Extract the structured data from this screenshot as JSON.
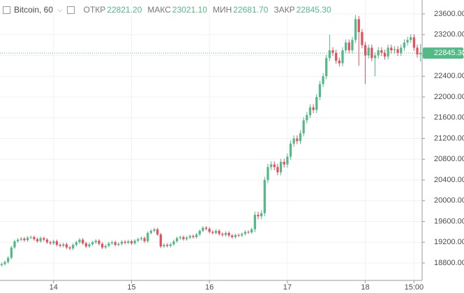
{
  "chart_data": {
    "type": "candlestick",
    "title": "Bitcoin, 60",
    "info": [
      {
        "label": "ОТКР",
        "value": "22821.20"
      },
      {
        "label": "МАКС",
        "value": "23021.10"
      },
      {
        "label": "МИН",
        "value": "22681.70"
      },
      {
        "label": "ЗАКР",
        "value": "22845.30"
      }
    ],
    "up_color": "#53b987",
    "down_color": "#eb4d5c",
    "grid": true,
    "ylim": [
      18464,
      23869
    ],
    "yticks": [
      {
        "value": 18800,
        "label": "18800.00"
      },
      {
        "value": 19200,
        "label": "19200.00"
      },
      {
        "value": 19600,
        "label": "19600.00"
      },
      {
        "value": 20000,
        "label": "20000.00"
      },
      {
        "value": 20400,
        "label": "20400.00"
      },
      {
        "value": 20800,
        "label": "20800.00"
      },
      {
        "value": 21200,
        "label": "21200.00"
      },
      {
        "value": 21600,
        "label": "21600.00"
      },
      {
        "value": 22000,
        "label": "22000.00"
      },
      {
        "value": 22400,
        "label": "22400.00"
      },
      {
        "value": 22800,
        "label": "22800.00"
      },
      {
        "value": 23200,
        "label": "23200.00"
      },
      {
        "value": 23600,
        "label": "23600.00"
      }
    ],
    "last_price": {
      "value": 22845.3,
      "label": "22845.30"
    },
    "categories": [
      null,
      null,
      null,
      null,
      null,
      null,
      null,
      null,
      null,
      null,
      null,
      null,
      null,
      null,
      null,
      null,
      "14",
      null,
      null,
      null,
      null,
      null,
      null,
      null,
      null,
      null,
      null,
      null,
      null,
      null,
      null,
      null,
      null,
      null,
      null,
      null,
      null,
      null,
      null,
      null,
      "15",
      null,
      null,
      null,
      null,
      null,
      null,
      null,
      null,
      null,
      null,
      null,
      null,
      null,
      null,
      null,
      null,
      null,
      null,
      null,
      null,
      null,
      null,
      null,
      "16",
      null,
      null,
      null,
      null,
      null,
      null,
      null,
      null,
      null,
      null,
      null,
      null,
      null,
      null,
      null,
      null,
      null,
      null,
      null,
      null,
      null,
      null,
      null,
      "17",
      null,
      null,
      null,
      null,
      null,
      null,
      null,
      null,
      null,
      null,
      null,
      null,
      null,
      null,
      null,
      null,
      null,
      null,
      null,
      null,
      null,
      null,
      null,
      "18",
      null,
      null,
      null,
      null,
      null,
      null,
      null,
      null,
      null,
      null,
      null,
      null,
      null,
      null,
      "15:00",
      null,
      null
    ],
    "open": [
      18760,
      18780,
      18820,
      18900,
      19100,
      19220,
      19250,
      19270,
      19240,
      19290,
      19300,
      19260,
      19220,
      19280,
      19250,
      19200,
      19180,
      19220,
      19150,
      19130,
      19160,
      19100,
      19080,
      19150,
      19200,
      19250,
      19180,
      19120,
      19160,
      19200,
      19230,
      19170,
      19100,
      19130,
      19180,
      19200,
      19150,
      19170,
      19210,
      19190,
      19220,
      19180,
      19230,
      19260,
      19280,
      19220,
      19380,
      19420,
      19450,
      19350,
      19120,
      19150,
      19130,
      19160,
      19220,
      19280,
      19300,
      19260,
      19290,
      19320,
      19300,
      19350,
      19420,
      19480,
      19460,
      19400,
      19380,
      19420,
      19360,
      19340,
      19380,
      19330,
      19300,
      19340,
      19330,
      19360,
      19400,
      19390,
      19450,
      19730,
      19700,
      19760,
      20400,
      20650,
      20700,
      20650,
      20550,
      20750,
      20700,
      20850,
      21100,
      21200,
      21150,
      21300,
      21550,
      21650,
      21800,
      21750,
      22000,
      22250,
      22400,
      22750,
      22900,
      22850,
      22700,
      22650,
      22900,
      23050,
      22900,
      23100,
      23500,
      23250,
      23000,
      22800,
      22950,
      22750,
      22800,
      22900,
      22850,
      22780,
      22950,
      22900,
      22920,
      22850,
      22950,
      23050,
      23100,
      23150,
      22950,
      22821.2
    ],
    "high": [
      18810,
      18850,
      18930,
      19130,
      19250,
      19280,
      19300,
      19300,
      19320,
      19330,
      19330,
      19290,
      19310,
      19310,
      19280,
      19230,
      19250,
      19250,
      19180,
      19190,
      19190,
      19130,
      19180,
      19230,
      19280,
      19280,
      19210,
      19190,
      19230,
      19260,
      19260,
      19200,
      19160,
      19210,
      19230,
      19230,
      19200,
      19240,
      19240,
      19250,
      19250,
      19260,
      19290,
      19310,
      19310,
      19410,
      19450,
      19480,
      19480,
      19380,
      19180,
      19180,
      19190,
      19250,
      19310,
      19330,
      19330,
      19320,
      19350,
      19350,
      19380,
      19450,
      19510,
      19510,
      19490,
      19430,
      19450,
      19450,
      19390,
      19410,
      19410,
      19360,
      19370,
      19370,
      19390,
      19430,
      19430,
      19480,
      19790,
      19790,
      19820,
      20460,
      20710,
      20760,
      20760,
      20710,
      20810,
      20810,
      20910,
      21160,
      21260,
      21260,
      21360,
      21610,
      21710,
      21860,
      21860,
      22060,
      22310,
      22460,
      22810,
      23200,
      22960,
      22910,
      22760,
      22960,
      23110,
      23110,
      23160,
      23580,
      23560,
      23310,
      23060,
      23010,
      23010,
      22860,
      22960,
      22960,
      22910,
      23010,
      23010,
      22980,
      22980,
      23010,
      23110,
      23160,
      23210,
      23210,
      23010,
      23021.1
    ],
    "low": [
      18730,
      18750,
      18790,
      18870,
      19070,
      19190,
      19220,
      19210,
      19210,
      19260,
      19230,
      19190,
      19190,
      19220,
      19170,
      19150,
      19150,
      19120,
      19100,
      19100,
      19070,
      19050,
      19050,
      19120,
      19170,
      19150,
      19090,
      19090,
      19130,
      19170,
      19140,
      19070,
      19070,
      19100,
      19150,
      19120,
      19120,
      19140,
      19160,
      19160,
      19150,
      19150,
      19200,
      19230,
      19190,
      19190,
      19350,
      19390,
      19320,
      19090,
      19090,
      19100,
      19100,
      19130,
      19190,
      19250,
      19230,
      19230,
      19260,
      19270,
      19270,
      19320,
      19390,
      19430,
      19370,
      19350,
      19350,
      19330,
      19310,
      19310,
      19300,
      19270,
      19270,
      19300,
      19300,
      19330,
      19360,
      19360,
      19390,
      19640,
      19640,
      19700,
      20340,
      20590,
      20590,
      20490,
      20490,
      20640,
      20640,
      20790,
      21040,
      21090,
      21090,
      21240,
      21490,
      21590,
      21690,
      21690,
      21940,
      22190,
      22340,
      22690,
      22790,
      22640,
      22590,
      22590,
      22840,
      22840,
      22840,
      23040,
      22600,
      22940,
      22250,
      22740,
      22690,
      22400,
      22740,
      22790,
      22720,
      22720,
      22840,
      22840,
      22790,
      22790,
      22890,
      22990,
      23040,
      22890,
      22760,
      22681.7
    ],
    "close": [
      18780,
      18820,
      18900,
      19100,
      19220,
      19250,
      19270,
      19240,
      19290,
      19300,
      19260,
      19220,
      19280,
      19250,
      19200,
      19180,
      19220,
      19150,
      19130,
      19160,
      19100,
      19080,
      19150,
      19200,
      19250,
      19180,
      19120,
      19160,
      19200,
      19230,
      19170,
      19100,
      19130,
      19180,
      19200,
      19150,
      19170,
      19210,
      19190,
      19220,
      19180,
      19230,
      19260,
      19280,
      19220,
      19380,
      19420,
      19450,
      19350,
      19120,
      19150,
      19130,
      19160,
      19220,
      19280,
      19300,
      19260,
      19290,
      19320,
      19300,
      19350,
      19420,
      19480,
      19460,
      19400,
      19380,
      19420,
      19360,
      19340,
      19380,
      19330,
      19300,
      19340,
      19330,
      19360,
      19400,
      19390,
      19450,
      19730,
      19700,
      19760,
      20400,
      20650,
      20700,
      20650,
      20550,
      20750,
      20700,
      20850,
      21100,
      21200,
      21150,
      21300,
      21550,
      21650,
      21800,
      21750,
      22000,
      22250,
      22400,
      22750,
      22900,
      22850,
      22700,
      22650,
      22900,
      23050,
      22900,
      23100,
      23500,
      23250,
      23000,
      22800,
      22950,
      22750,
      22800,
      22900,
      22850,
      22780,
      22950,
      22900,
      22920,
      22850,
      22950,
      23050,
      23100,
      23150,
      22950,
      22821.2,
      22845.3
    ]
  }
}
